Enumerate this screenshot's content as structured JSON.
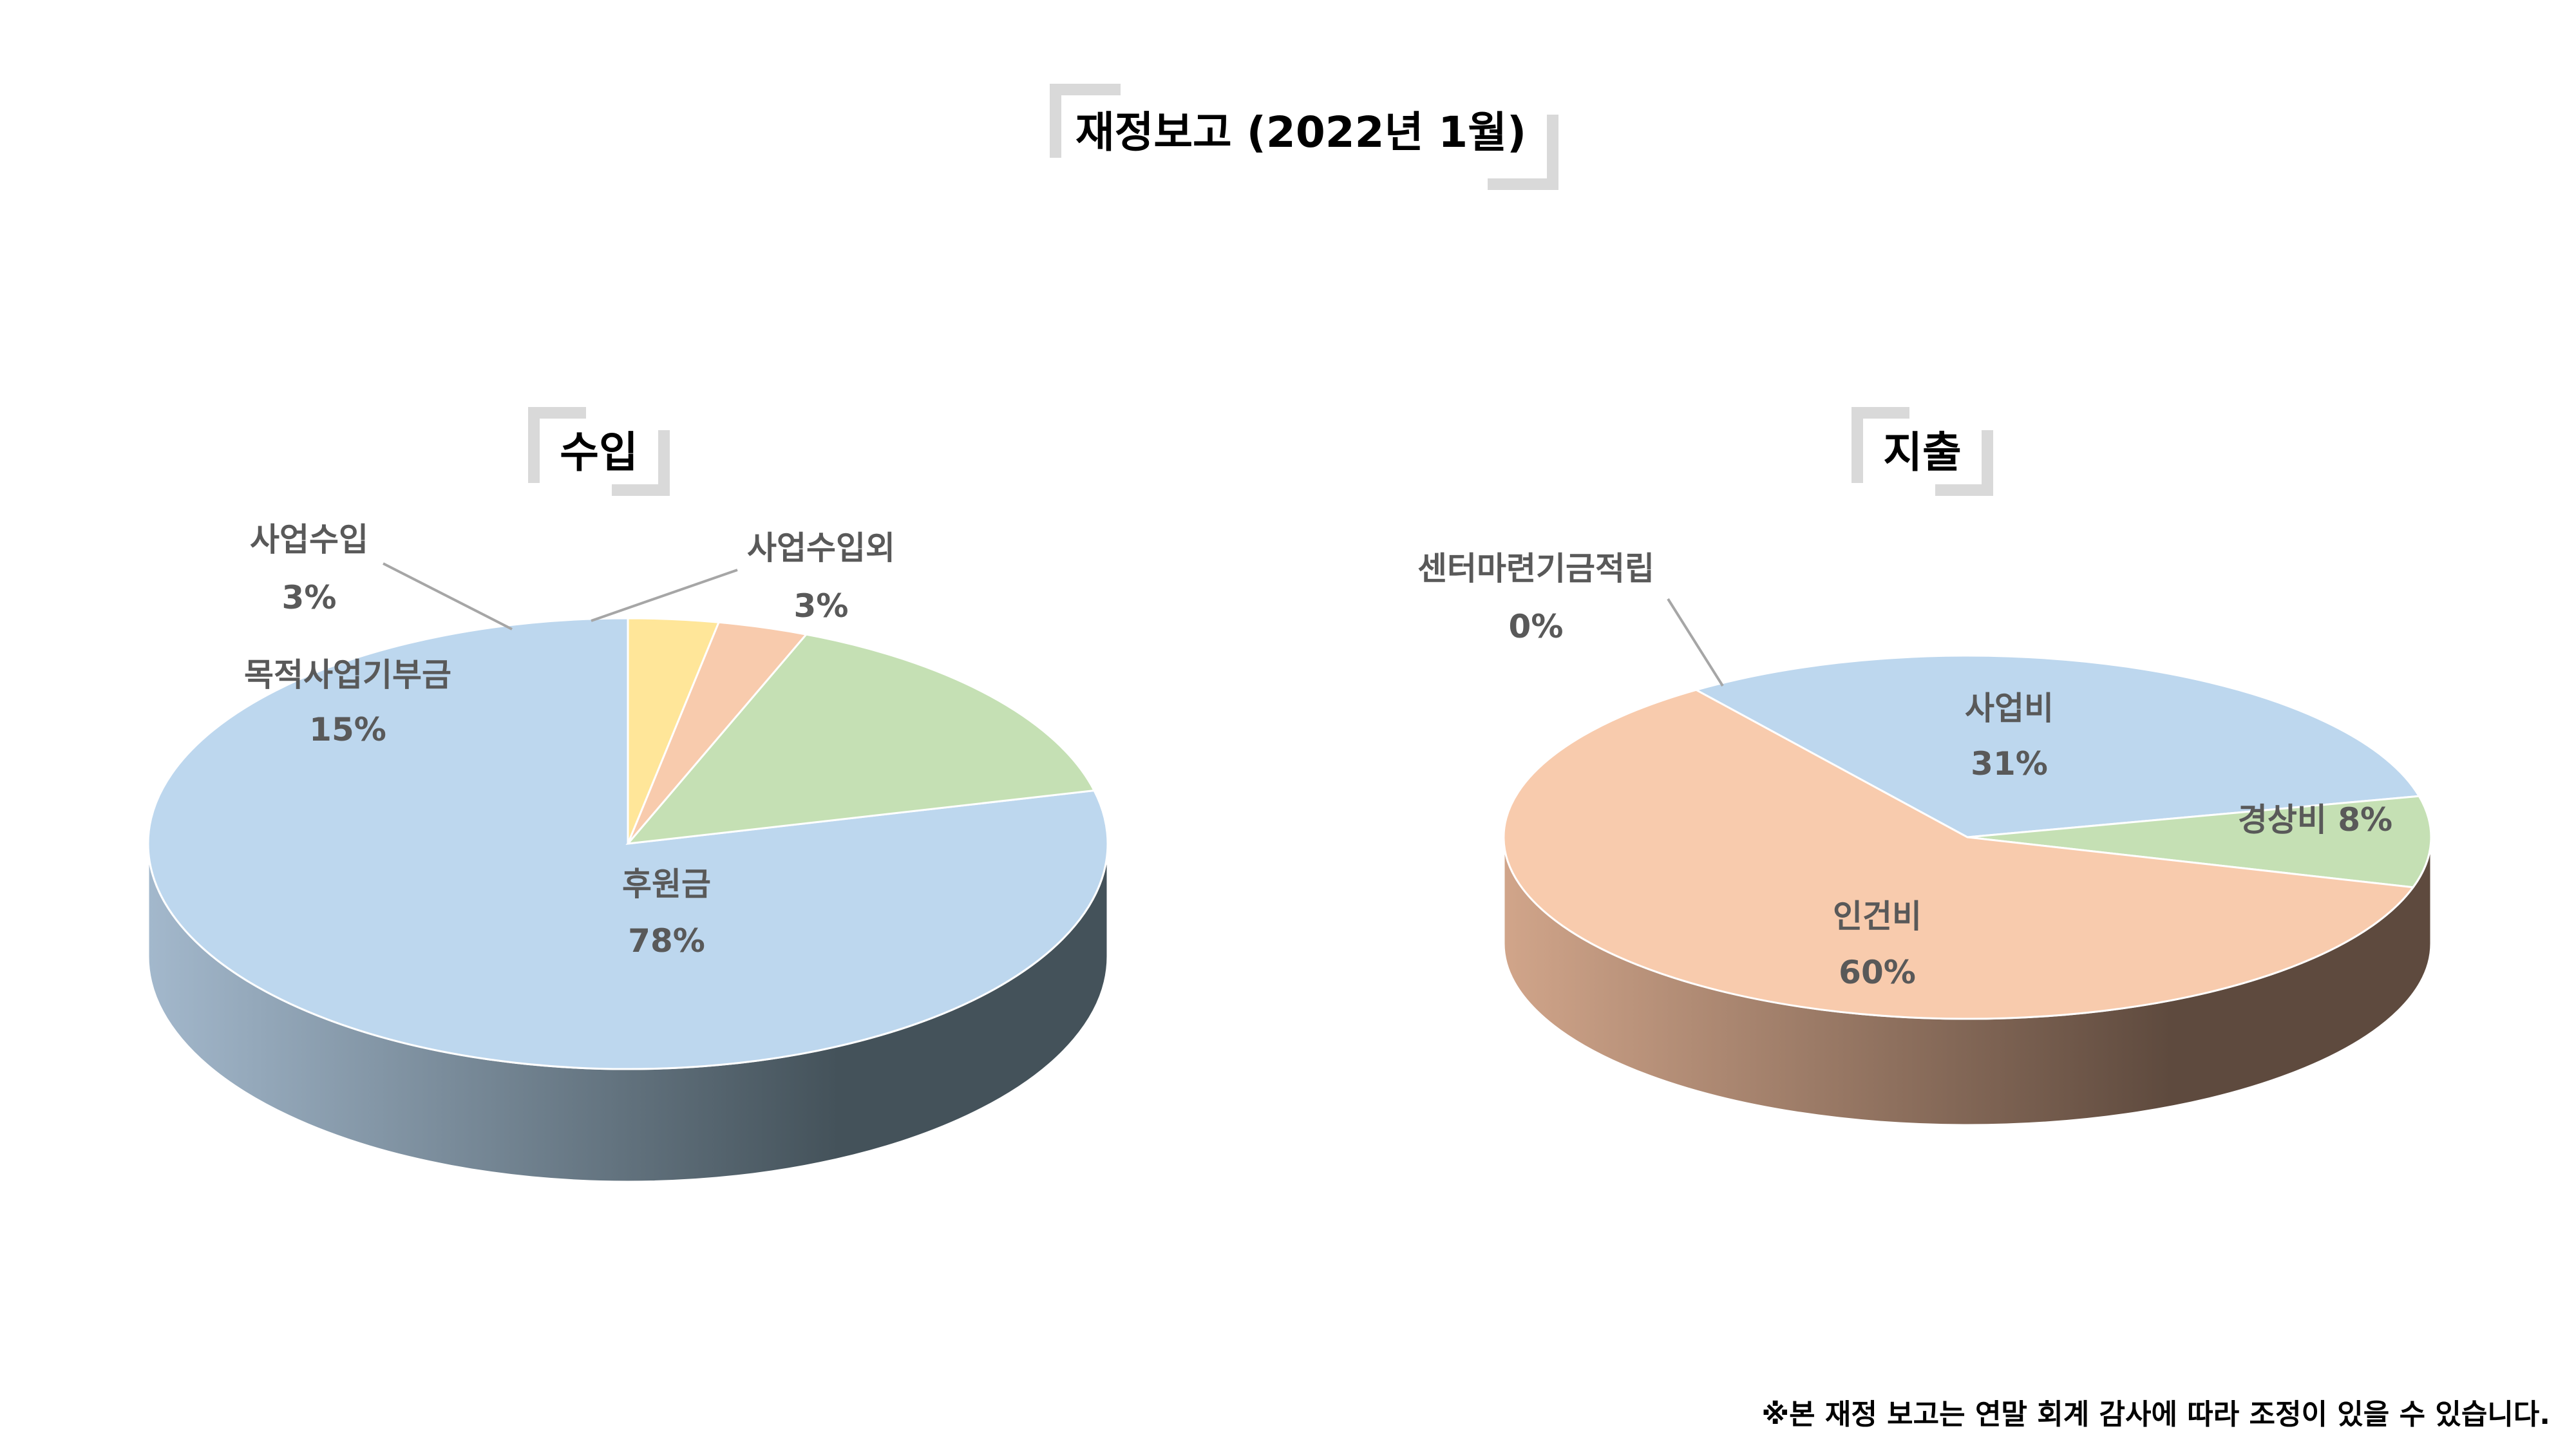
{
  "page": {
    "title": "재정보고 (2022년 1월)",
    "footnote": "※본 재정 보고는 연말 회계 감사에 따라 조정이 있을 수 있습니다."
  },
  "chart_data": [
    {
      "type": "pie",
      "title": "수입",
      "style": "3d",
      "slices": [
        {
          "label": "후원금",
          "value": 78,
          "value_text": "78%",
          "color": "#BDD7EE",
          "side_dark": "#44525A",
          "side_light": "#A3B8CC"
        },
        {
          "label": "목적사업기부금",
          "value": 15,
          "value_text": "15%",
          "color": "#C5E0B4"
        },
        {
          "label": "사업수입",
          "value": 3,
          "value_text": "3%",
          "color": "#F8CBAD"
        },
        {
          "label": "사업수입외",
          "value": 3,
          "value_text": "3%",
          "color": "#FFE699"
        }
      ]
    },
    {
      "type": "pie",
      "title": "지출",
      "style": "3d",
      "slices": [
        {
          "label": "사업비",
          "value": 31,
          "value_text": "31%",
          "color": "#BDD7EE"
        },
        {
          "label": "경상비",
          "value": 8,
          "value_text": "8%",
          "color": "#C5E0B4"
        },
        {
          "label": "인건비",
          "value": 60,
          "value_text": "60%",
          "color": "#F8CBAD",
          "side_dark": "#5E4A3E",
          "side_light": "#D1A58A"
        },
        {
          "label": "센터마련기금적립",
          "value": 0,
          "value_text": "0%",
          "color": "#FFE699"
        }
      ]
    }
  ]
}
